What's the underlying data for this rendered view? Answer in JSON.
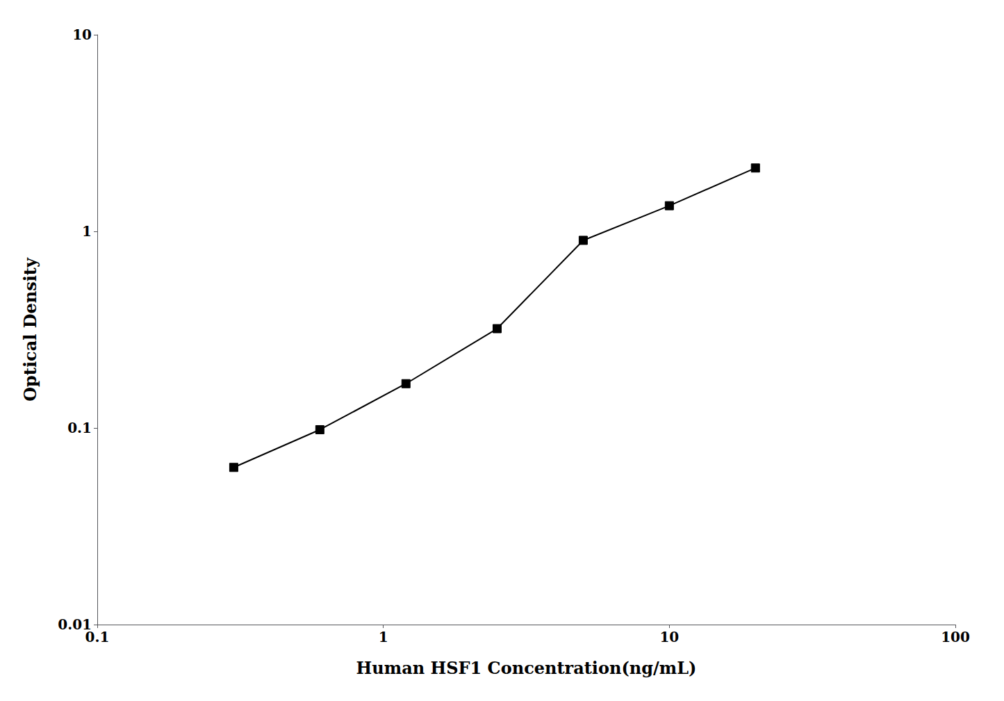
{
  "chart_data": {
    "type": "line",
    "xlabel": "Human HSF1 Concentration(ng/mL)",
    "ylabel": "Optical Density",
    "x": [
      0.3,
      0.6,
      1.2,
      2.5,
      5.0,
      10.0,
      20.0
    ],
    "values": [
      0.063,
      0.098,
      0.168,
      0.32,
      0.9,
      1.35,
      2.1
    ],
    "xlim": [
      0.1,
      100
    ],
    "ylim": [
      0.01,
      10
    ],
    "xticks": [
      0.1,
      1,
      10,
      100
    ],
    "yticks": [
      0.01,
      0.1,
      1,
      10
    ],
    "log": true,
    "grid": false,
    "color": "#000000",
    "marker": "square"
  }
}
